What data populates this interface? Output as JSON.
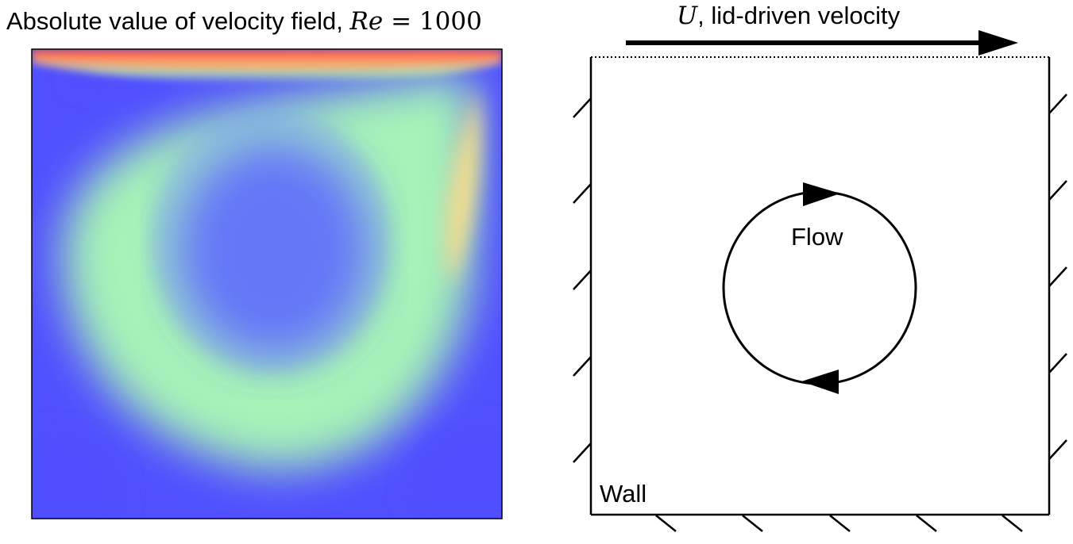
{
  "left_panel": {
    "title_text": "Absolute value of velocity field, ",
    "title_math_var": "Re",
    "title_math_eq": " = 1000",
    "colors": {
      "low": "#5050ff",
      "mid_low": "#7fa8f0",
      "mid": "#a6f2b8",
      "mid_high": "#c6ffa8",
      "high": "#f5de8c",
      "lid": "#ff4a3d"
    }
  },
  "right_panel": {
    "lid_var": "U",
    "lid_text": ", lid-driven velocity",
    "flow_label": "Flow",
    "wall_label": "Wall"
  }
}
